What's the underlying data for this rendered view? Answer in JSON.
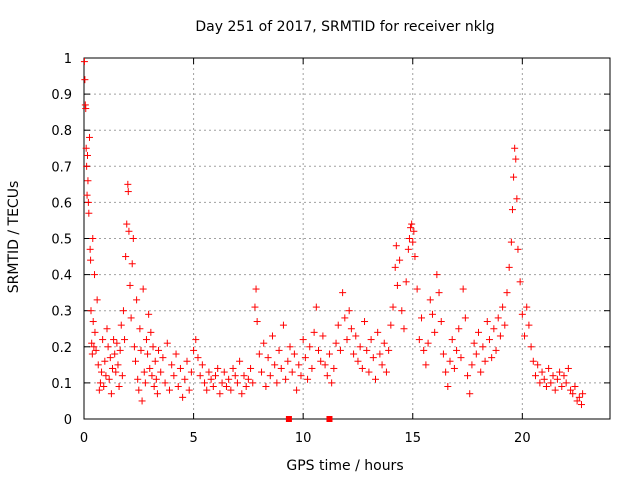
{
  "chart_data": {
    "type": "scatter",
    "title": "Day 251 of 2017, SRMTID for receiver nklg",
    "xlabel": "GPS time / hours",
    "ylabel": "SRMTID / TECUs",
    "xlim": [
      0,
      24
    ],
    "ylim": [
      0,
      1
    ],
    "xticks": [
      0,
      5,
      10,
      15,
      20
    ],
    "yticks": [
      0,
      0.1,
      0.2,
      0.3,
      0.4,
      0.5,
      0.6,
      0.7,
      0.8,
      0.9,
      1
    ],
    "grid": true,
    "marker": "+",
    "color": "#ff0000",
    "series": [
      {
        "name": "SRMTID",
        "points": [
          [
            0.02,
            0.99
          ],
          [
            0.04,
            0.94
          ],
          [
            0.06,
            0.87
          ],
          [
            0.08,
            0.86
          ],
          [
            0.1,
            0.75
          ],
          [
            0.12,
            0.7
          ],
          [
            0.14,
            0.62
          ],
          [
            0.16,
            0.73
          ],
          [
            0.18,
            0.66
          ],
          [
            0.2,
            0.6
          ],
          [
            0.22,
            0.57
          ],
          [
            0.25,
            0.78
          ],
          [
            0.28,
            0.47
          ],
          [
            0.3,
            0.44
          ],
          [
            0.32,
            0.3
          ],
          [
            0.35,
            0.21
          ],
          [
            0.38,
            0.18
          ],
          [
            0.4,
            0.5
          ],
          [
            0.42,
            0.27
          ],
          [
            0.45,
            0.2
          ],
          [
            0.48,
            0.4
          ],
          [
            0.5,
            0.24
          ],
          [
            0.55,
            0.19
          ],
          [
            0.6,
            0.33
          ],
          [
            0.65,
            0.15
          ],
          [
            0.7,
            0.08
          ],
          [
            0.75,
            0.1
          ],
          [
            0.8,
            0.13
          ],
          [
            0.85,
            0.22
          ],
          [
            0.9,
            0.09
          ],
          [
            0.95,
            0.16
          ],
          [
            1.0,
            0.12
          ],
          [
            1.05,
            0.25
          ],
          [
            1.1,
            0.2
          ],
          [
            1.15,
            0.11
          ],
          [
            1.2,
            0.17
          ],
          [
            1.25,
            0.07
          ],
          [
            1.3,
            0.14
          ],
          [
            1.35,
            0.22
          ],
          [
            1.4,
            0.18
          ],
          [
            1.45,
            0.13
          ],
          [
            1.5,
            0.21
          ],
          [
            1.55,
            0.15
          ],
          [
            1.6,
            0.09
          ],
          [
            1.65,
            0.19
          ],
          [
            1.7,
            0.26
          ],
          [
            1.75,
            0.12
          ],
          [
            1.8,
            0.3
          ],
          [
            1.85,
            0.22
          ],
          [
            1.9,
            0.45
          ],
          [
            1.95,
            0.54
          ],
          [
            2.0,
            0.65
          ],
          [
            2.02,
            0.63
          ],
          [
            2.05,
            0.52
          ],
          [
            2.1,
            0.37
          ],
          [
            2.15,
            0.28
          ],
          [
            2.2,
            0.43
          ],
          [
            2.25,
            0.5
          ],
          [
            2.3,
            0.2
          ],
          [
            2.35,
            0.16
          ],
          [
            2.4,
            0.33
          ],
          [
            2.45,
            0.11
          ],
          [
            2.5,
            0.08
          ],
          [
            2.55,
            0.25
          ],
          [
            2.6,
            0.19
          ],
          [
            2.65,
            0.05
          ],
          [
            2.7,
            0.36
          ],
          [
            2.75,
            0.13
          ],
          [
            2.8,
            0.1
          ],
          [
            2.85,
            0.22
          ],
          [
            2.9,
            0.18
          ],
          [
            2.95,
            0.29
          ],
          [
            3.0,
            0.14
          ],
          [
            3.05,
            0.24
          ],
          [
            3.1,
            0.12
          ],
          [
            3.15,
            0.2
          ],
          [
            3.2,
            0.09
          ],
          [
            3.25,
            0.16
          ],
          [
            3.3,
            0.11
          ],
          [
            3.35,
            0.07
          ],
          [
            3.4,
            0.19
          ],
          [
            3.5,
            0.13
          ],
          [
            3.6,
            0.17
          ],
          [
            3.7,
            0.1
          ],
          [
            3.8,
            0.21
          ],
          [
            3.9,
            0.08
          ],
          [
            4.0,
            0.15
          ],
          [
            4.1,
            0.12
          ],
          [
            4.2,
            0.18
          ],
          [
            4.3,
            0.09
          ],
          [
            4.4,
            0.14
          ],
          [
            4.5,
            0.06
          ],
          [
            4.6,
            0.11
          ],
          [
            4.7,
            0.16
          ],
          [
            4.8,
            0.08
          ],
          [
            4.9,
            0.13
          ],
          [
            5.0,
            0.19
          ],
          [
            5.1,
            0.22
          ],
          [
            5.2,
            0.17
          ],
          [
            5.3,
            0.12
          ],
          [
            5.4,
            0.15
          ],
          [
            5.5,
            0.1
          ],
          [
            5.6,
            0.08
          ],
          [
            5.7,
            0.13
          ],
          [
            5.8,
            0.11
          ],
          [
            5.9,
            0.09
          ],
          [
            6.0,
            0.12
          ],
          [
            6.1,
            0.14
          ],
          [
            6.2,
            0.07
          ],
          [
            6.3,
            0.1
          ],
          [
            6.4,
            0.13
          ],
          [
            6.5,
            0.09
          ],
          [
            6.6,
            0.11
          ],
          [
            6.7,
            0.08
          ],
          [
            6.8,
            0.14
          ],
          [
            6.9,
            0.12
          ],
          [
            7.0,
            0.1
          ],
          [
            7.1,
            0.16
          ],
          [
            7.2,
            0.07
          ],
          [
            7.3,
            0.12
          ],
          [
            7.4,
            0.09
          ],
          [
            7.5,
            0.11
          ],
          [
            7.6,
            0.14
          ],
          [
            7.7,
            0.1
          ],
          [
            7.8,
            0.31
          ],
          [
            7.85,
            0.36
          ],
          [
            7.9,
            0.27
          ],
          [
            8.0,
            0.18
          ],
          [
            8.1,
            0.13
          ],
          [
            8.2,
            0.21
          ],
          [
            8.3,
            0.09
          ],
          [
            8.4,
            0.17
          ],
          [
            8.5,
            0.12
          ],
          [
            8.6,
            0.23
          ],
          [
            8.7,
            0.15
          ],
          [
            8.8,
            0.1
          ],
          [
            8.9,
            0.19
          ],
          [
            9.0,
            0.14
          ],
          [
            9.1,
            0.26
          ],
          [
            9.2,
            0.11
          ],
          [
            9.3,
            0.16
          ],
          [
            9.4,
            0.2
          ],
          [
            9.5,
            0.13
          ],
          [
            9.6,
            0.18
          ],
          [
            9.7,
            0.08
          ],
          [
            9.8,
            0.15
          ],
          [
            9.9,
            0.12
          ],
          [
            10.0,
            0.22
          ],
          [
            10.1,
            0.17
          ],
          [
            10.2,
            0.11
          ],
          [
            10.3,
            0.2
          ],
          [
            10.4,
            0.14
          ],
          [
            10.5,
            0.24
          ],
          [
            10.6,
            0.31
          ],
          [
            10.7,
            0.19
          ],
          [
            10.8,
            0.16
          ],
          [
            10.9,
            0.23
          ],
          [
            11.0,
            0.15
          ],
          [
            11.1,
            0.12
          ],
          [
            11.2,
            0.18
          ],
          [
            11.3,
            0.1
          ],
          [
            11.4,
            0.14
          ],
          [
            11.5,
            0.21
          ],
          [
            11.6,
            0.26
          ],
          [
            11.7,
            0.19
          ],
          [
            11.8,
            0.35
          ],
          [
            11.9,
            0.28
          ],
          [
            12.0,
            0.22
          ],
          [
            12.1,
            0.3
          ],
          [
            12.2,
            0.25
          ],
          [
            12.3,
            0.18
          ],
          [
            12.4,
            0.23
          ],
          [
            12.5,
            0.16
          ],
          [
            12.6,
            0.2
          ],
          [
            12.7,
            0.14
          ],
          [
            12.8,
            0.27
          ],
          [
            12.9,
            0.19
          ],
          [
            13.0,
            0.13
          ],
          [
            13.1,
            0.22
          ],
          [
            13.2,
            0.17
          ],
          [
            13.3,
            0.11
          ],
          [
            13.4,
            0.24
          ],
          [
            13.5,
            0.18
          ],
          [
            13.6,
            0.15
          ],
          [
            13.7,
            0.21
          ],
          [
            13.8,
            0.13
          ],
          [
            13.9,
            0.19
          ],
          [
            14.0,
            0.26
          ],
          [
            14.1,
            0.31
          ],
          [
            14.2,
            0.42
          ],
          [
            14.25,
            0.48
          ],
          [
            14.3,
            0.37
          ],
          [
            14.4,
            0.44
          ],
          [
            14.5,
            0.3
          ],
          [
            14.6,
            0.25
          ],
          [
            14.7,
            0.38
          ],
          [
            14.8,
            0.47
          ],
          [
            14.85,
            0.5
          ],
          [
            14.9,
            0.53
          ],
          [
            14.95,
            0.54
          ],
          [
            15.0,
            0.49
          ],
          [
            15.05,
            0.52
          ],
          [
            15.1,
            0.45
          ],
          [
            15.2,
            0.36
          ],
          [
            15.3,
            0.22
          ],
          [
            15.4,
            0.28
          ],
          [
            15.5,
            0.19
          ],
          [
            15.6,
            0.15
          ],
          [
            15.7,
            0.21
          ],
          [
            15.8,
            0.33
          ],
          [
            15.9,
            0.29
          ],
          [
            16.0,
            0.24
          ],
          [
            16.1,
            0.4
          ],
          [
            16.2,
            0.35
          ],
          [
            16.3,
            0.27
          ],
          [
            16.4,
            0.18
          ],
          [
            16.5,
            0.13
          ],
          [
            16.6,
            0.09
          ],
          [
            16.7,
            0.16
          ],
          [
            16.8,
            0.22
          ],
          [
            16.9,
            0.14
          ],
          [
            17.0,
            0.19
          ],
          [
            17.1,
            0.25
          ],
          [
            17.2,
            0.17
          ],
          [
            17.3,
            0.36
          ],
          [
            17.4,
            0.28
          ],
          [
            17.5,
            0.12
          ],
          [
            17.6,
            0.07
          ],
          [
            17.7,
            0.15
          ],
          [
            17.8,
            0.21
          ],
          [
            17.9,
            0.18
          ],
          [
            18.0,
            0.24
          ],
          [
            18.1,
            0.13
          ],
          [
            18.2,
            0.2
          ],
          [
            18.3,
            0.16
          ],
          [
            18.4,
            0.27
          ],
          [
            18.5,
            0.22
          ],
          [
            18.6,
            0.17
          ],
          [
            18.7,
            0.25
          ],
          [
            18.8,
            0.19
          ],
          [
            18.9,
            0.28
          ],
          [
            19.0,
            0.23
          ],
          [
            19.1,
            0.31
          ],
          [
            19.2,
            0.26
          ],
          [
            19.3,
            0.35
          ],
          [
            19.4,
            0.42
          ],
          [
            19.5,
            0.49
          ],
          [
            19.55,
            0.58
          ],
          [
            19.6,
            0.67
          ],
          [
            19.65,
            0.75
          ],
          [
            19.7,
            0.72
          ],
          [
            19.75,
            0.61
          ],
          [
            19.8,
            0.47
          ],
          [
            19.9,
            0.38
          ],
          [
            20.0,
            0.29
          ],
          [
            20.1,
            0.23
          ],
          [
            20.2,
            0.31
          ],
          [
            20.3,
            0.26
          ],
          [
            20.4,
            0.2
          ],
          [
            20.5,
            0.16
          ],
          [
            20.6,
            0.12
          ],
          [
            20.7,
            0.15
          ],
          [
            20.8,
            0.1
          ],
          [
            20.9,
            0.13
          ],
          [
            21.0,
            0.11
          ],
          [
            21.1,
            0.09
          ],
          [
            21.2,
            0.14
          ],
          [
            21.3,
            0.1
          ],
          [
            21.4,
            0.12
          ],
          [
            21.5,
            0.08
          ],
          [
            21.6,
            0.11
          ],
          [
            21.7,
            0.13
          ],
          [
            21.8,
            0.09
          ],
          [
            21.9,
            0.12
          ],
          [
            22.0,
            0.1
          ],
          [
            22.1,
            0.14
          ],
          [
            22.2,
            0.08
          ],
          [
            22.3,
            0.07
          ],
          [
            22.4,
            0.09
          ],
          [
            22.5,
            0.05
          ],
          [
            22.6,
            0.06
          ],
          [
            22.7,
            0.04
          ],
          [
            22.75,
            0.07
          ]
        ]
      },
      {
        "name": "zero-markers",
        "points": [
          [
            9.35,
            0.0
          ],
          [
            11.2,
            0.0
          ]
        ]
      }
    ]
  }
}
